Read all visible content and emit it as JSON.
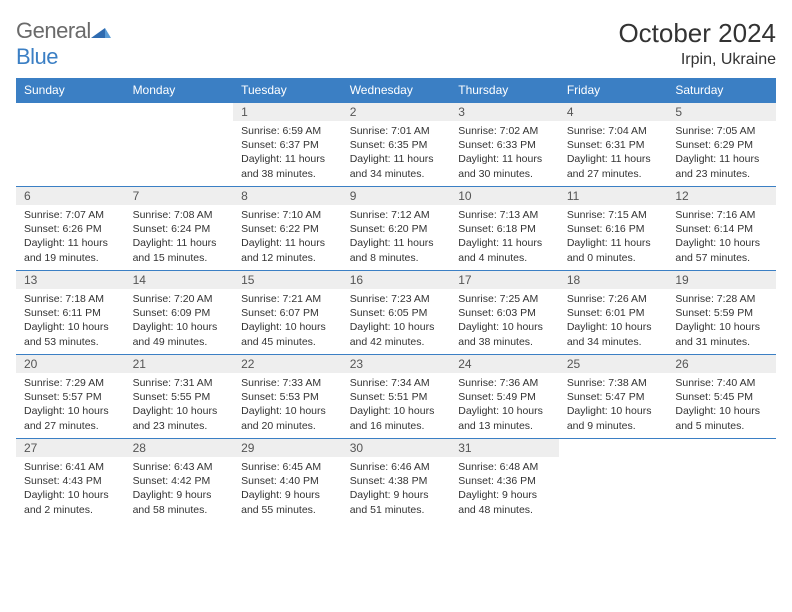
{
  "logo": {
    "word1": "General",
    "word2": "Blue",
    "icon_color": "#2f6bb0"
  },
  "title": "October 2024",
  "location": "Irpin, Ukraine",
  "colors": {
    "header_bg": "#3b7fc4",
    "grid_line": "#3b7fc4",
    "daynum_bg": "#eeeeee"
  },
  "weekdays": [
    "Sunday",
    "Monday",
    "Tuesday",
    "Wednesday",
    "Thursday",
    "Friday",
    "Saturday"
  ],
  "weeks": [
    [
      {
        "empty": true
      },
      {
        "empty": true
      },
      {
        "n": "1",
        "sr": "6:59 AM",
        "ss": "6:37 PM",
        "dl": "11 hours and 38 minutes."
      },
      {
        "n": "2",
        "sr": "7:01 AM",
        "ss": "6:35 PM",
        "dl": "11 hours and 34 minutes."
      },
      {
        "n": "3",
        "sr": "7:02 AM",
        "ss": "6:33 PM",
        "dl": "11 hours and 30 minutes."
      },
      {
        "n": "4",
        "sr": "7:04 AM",
        "ss": "6:31 PM",
        "dl": "11 hours and 27 minutes."
      },
      {
        "n": "5",
        "sr": "7:05 AM",
        "ss": "6:29 PM",
        "dl": "11 hours and 23 minutes."
      }
    ],
    [
      {
        "n": "6",
        "sr": "7:07 AM",
        "ss": "6:26 PM",
        "dl": "11 hours and 19 minutes."
      },
      {
        "n": "7",
        "sr": "7:08 AM",
        "ss": "6:24 PM",
        "dl": "11 hours and 15 minutes."
      },
      {
        "n": "8",
        "sr": "7:10 AM",
        "ss": "6:22 PM",
        "dl": "11 hours and 12 minutes."
      },
      {
        "n": "9",
        "sr": "7:12 AM",
        "ss": "6:20 PM",
        "dl": "11 hours and 8 minutes."
      },
      {
        "n": "10",
        "sr": "7:13 AM",
        "ss": "6:18 PM",
        "dl": "11 hours and 4 minutes."
      },
      {
        "n": "11",
        "sr": "7:15 AM",
        "ss": "6:16 PM",
        "dl": "11 hours and 0 minutes."
      },
      {
        "n": "12",
        "sr": "7:16 AM",
        "ss": "6:14 PM",
        "dl": "10 hours and 57 minutes."
      }
    ],
    [
      {
        "n": "13",
        "sr": "7:18 AM",
        "ss": "6:11 PM",
        "dl": "10 hours and 53 minutes."
      },
      {
        "n": "14",
        "sr": "7:20 AM",
        "ss": "6:09 PM",
        "dl": "10 hours and 49 minutes."
      },
      {
        "n": "15",
        "sr": "7:21 AM",
        "ss": "6:07 PM",
        "dl": "10 hours and 45 minutes."
      },
      {
        "n": "16",
        "sr": "7:23 AM",
        "ss": "6:05 PM",
        "dl": "10 hours and 42 minutes."
      },
      {
        "n": "17",
        "sr": "7:25 AM",
        "ss": "6:03 PM",
        "dl": "10 hours and 38 minutes."
      },
      {
        "n": "18",
        "sr": "7:26 AM",
        "ss": "6:01 PM",
        "dl": "10 hours and 34 minutes."
      },
      {
        "n": "19",
        "sr": "7:28 AM",
        "ss": "5:59 PM",
        "dl": "10 hours and 31 minutes."
      }
    ],
    [
      {
        "n": "20",
        "sr": "7:29 AM",
        "ss": "5:57 PM",
        "dl": "10 hours and 27 minutes."
      },
      {
        "n": "21",
        "sr": "7:31 AM",
        "ss": "5:55 PM",
        "dl": "10 hours and 23 minutes."
      },
      {
        "n": "22",
        "sr": "7:33 AM",
        "ss": "5:53 PM",
        "dl": "10 hours and 20 minutes."
      },
      {
        "n": "23",
        "sr": "7:34 AM",
        "ss": "5:51 PM",
        "dl": "10 hours and 16 minutes."
      },
      {
        "n": "24",
        "sr": "7:36 AM",
        "ss": "5:49 PM",
        "dl": "10 hours and 13 minutes."
      },
      {
        "n": "25",
        "sr": "7:38 AM",
        "ss": "5:47 PM",
        "dl": "10 hours and 9 minutes."
      },
      {
        "n": "26",
        "sr": "7:40 AM",
        "ss": "5:45 PM",
        "dl": "10 hours and 5 minutes."
      }
    ],
    [
      {
        "n": "27",
        "sr": "6:41 AM",
        "ss": "4:43 PM",
        "dl": "10 hours and 2 minutes."
      },
      {
        "n": "28",
        "sr": "6:43 AM",
        "ss": "4:42 PM",
        "dl": "9 hours and 58 minutes."
      },
      {
        "n": "29",
        "sr": "6:45 AM",
        "ss": "4:40 PM",
        "dl": "9 hours and 55 minutes."
      },
      {
        "n": "30",
        "sr": "6:46 AM",
        "ss": "4:38 PM",
        "dl": "9 hours and 51 minutes."
      },
      {
        "n": "31",
        "sr": "6:48 AM",
        "ss": "4:36 PM",
        "dl": "9 hours and 48 minutes."
      },
      {
        "empty": true
      },
      {
        "empty": true
      }
    ]
  ],
  "labels": {
    "sunrise": "Sunrise:",
    "sunset": "Sunset:",
    "daylight": "Daylight:"
  }
}
